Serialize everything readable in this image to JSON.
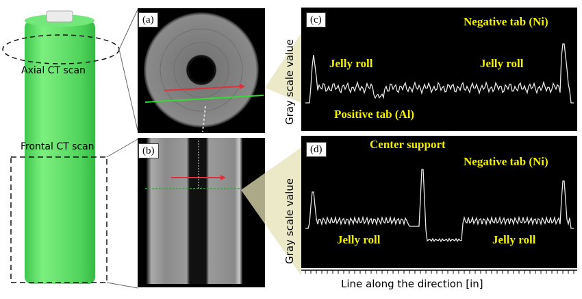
{
  "left": {
    "axial_label": "Axial CT scan",
    "frontal_label": "Frontal CT scan"
  },
  "panels": {
    "a": "(a)",
    "b": "(b)",
    "c": "(c)",
    "d": "(d)"
  },
  "plots": {
    "c_ylabel": "Gray scale value",
    "d_ylabel": "Gray scale value",
    "xlabel": "Line along the direction  [in]",
    "c_annotations": {
      "negative_tab": "Negative tab (Ni)",
      "jelly_roll_left": "Jelly roll",
      "jelly_roll_right": "Jelly roll",
      "positive_tab": "Positive tab (Al)"
    },
    "d_annotations": {
      "center_support": "Center support",
      "negative_tab": "Negative tab (Ni)",
      "jelly_roll_left": "Jelly roll",
      "jelly_roll_right": "Jelly roll"
    }
  },
  "colors": {
    "battery_green": "#5ee06a",
    "plot_bg": "#000000",
    "trace": "#e8e8e8",
    "annotation": "#f2f000",
    "arrow": "#e0303a",
    "scan_line": "#33dd33"
  }
}
